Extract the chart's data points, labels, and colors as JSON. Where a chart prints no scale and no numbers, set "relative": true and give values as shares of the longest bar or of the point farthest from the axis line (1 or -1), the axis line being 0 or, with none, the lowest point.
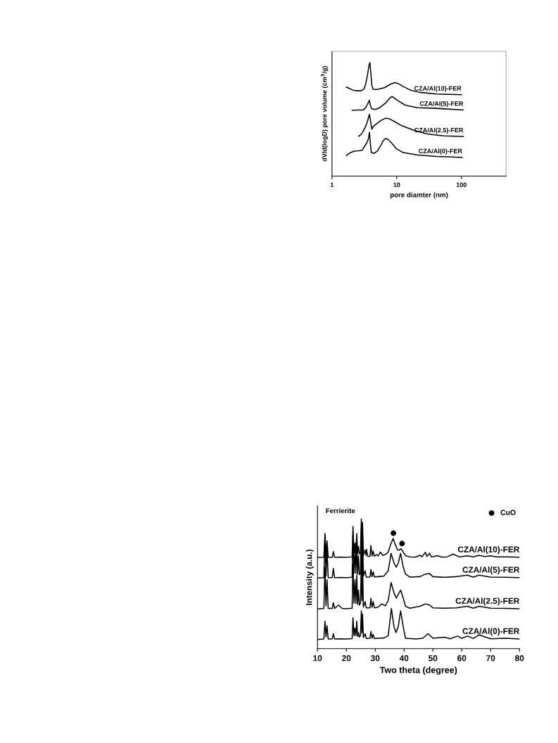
{
  "chart_data": [
    {
      "type": "line",
      "relative": true,
      "log": "x",
      "xlim": [
        1,
        490
      ],
      "xticks": [
        1,
        10,
        100
      ],
      "xlabel": "pore diamter (nm)",
      "ylabel": "dV/d(logD) pore volume (cm$^{3}$/g)",
      "series": [
        {
          "name": "CZA/Al(10)-FER",
          "color": "#000000",
          "x": [
            1.67,
            1.84,
            2.09,
            2.37,
            2.8,
            3.1,
            3.31,
            3.54,
            3.76,
            3.85,
            3.98,
            4.12,
            4.33,
            5.03,
            6.47,
            7.98,
            9.43,
            10.7,
            12.6,
            16.3,
            22.7,
            40.8,
            100
          ],
          "values": [
            0.785,
            0.773,
            0.758,
            0.752,
            0.752,
            0.764,
            0.81,
            0.893,
            0.986,
            1.0,
            0.913,
            0.8,
            0.764,
            0.764,
            0.779,
            0.81,
            0.824,
            0.814,
            0.789,
            0.758,
            0.738,
            0.723,
            0.717
          ]
        },
        {
          "name": "CZA/Al(5)-FER",
          "color": "#000000",
          "x": [
            2.05,
            2.47,
            3.05,
            3.31,
            3.54,
            3.79,
            3.91,
            4.12,
            4.63,
            5.47,
            6.75,
            7.65,
            8.46,
            9.04,
            10.7,
            13.7,
            20.9,
            40.8,
            107
          ],
          "values": [
            0.579,
            0.583,
            0.583,
            0.603,
            0.634,
            0.669,
            0.624,
            0.593,
            0.587,
            0.603,
            0.645,
            0.682,
            0.702,
            0.69,
            0.661,
            0.624,
            0.603,
            0.597,
            0.583
          ]
        },
        {
          "name": "CZA/Al(2.5)-FER",
          "color": "#000000",
          "x": [
            2.58,
            2.8,
            3.05,
            3.37,
            3.6,
            3.79,
            3.95,
            4.12,
            4.36,
            4.83,
            5.71,
            6.75,
            7.65,
            9.04,
            11.6,
            17.7,
            29.2,
            52.5,
            107
          ],
          "values": [
            0.351,
            0.366,
            0.397,
            0.448,
            0.5,
            0.545,
            0.479,
            0.413,
            0.438,
            0.459,
            0.49,
            0.51,
            0.506,
            0.483,
            0.448,
            0.407,
            0.372,
            0.355,
            0.349
          ]
        },
        {
          "name": "CZA/Al(0)-FER",
          "color": "#000000",
          "x": [
            1.67,
            1.84,
            2.0,
            2.27,
            2.58,
            2.92,
            3.18,
            3.45,
            3.66,
            3.79,
            3.91,
            4.05,
            4.44,
            5.03,
            5.71,
            6.21,
            6.75,
            7.33,
            8.32,
            9.84,
            12.6,
            20.9,
            40.8,
            103
          ],
          "values": [
            0.18,
            0.2,
            0.211,
            0.221,
            0.223,
            0.227,
            0.262,
            0.293,
            0.331,
            0.386,
            0.293,
            0.207,
            0.2,
            0.221,
            0.273,
            0.314,
            0.331,
            0.324,
            0.293,
            0.242,
            0.207,
            0.186,
            0.174,
            0.165
          ]
        }
      ]
    },
    {
      "type": "line",
      "relative": true,
      "xlim": [
        10,
        80
      ],
      "xticks": [
        10,
        20,
        30,
        40,
        50,
        60,
        70,
        80
      ],
      "xlabel": "Two theta (degree)",
      "ylabel": "Intensity (a.u.)",
      "legend": "top right",
      "annotations": [
        "Ferrierite"
      ],
      "series": [
        {
          "name": "CZA/Al(10)-FER",
          "color": "#000000",
          "x": [
            10,
            12.2,
            12.6,
            12.95,
            13.3,
            13.7,
            15.1,
            15.5,
            15.9,
            18,
            20,
            22.0,
            22.3,
            22.65,
            23.0,
            23.3,
            23.6,
            23.9,
            24.2,
            24.5,
            24.9,
            25.2,
            25.4,
            25.6,
            25.9,
            26.5,
            26.8,
            27.0,
            27.4,
            28.2,
            28.5,
            28.9,
            29.3,
            29.7,
            30.5,
            31.0,
            31.8,
            32.5,
            33.5,
            34.5,
            35.3,
            36.2,
            37.0,
            37.8,
            38.4,
            39.0,
            39.8,
            40.6,
            42,
            44,
            45.5,
            46.2,
            47.4,
            47.9,
            48.8,
            49.5,
            51.6,
            53,
            55,
            57,
            59,
            62,
            64,
            66,
            68,
            70,
            72,
            76,
            80
          ],
          "values": [
            0.703,
            0.705,
            0.888,
            0.72,
            0.832,
            0.705,
            0.705,
            0.749,
            0.705,
            0.706,
            0.705,
            0.708,
            0.942,
            0.74,
            0.814,
            0.74,
            0.888,
            0.735,
            0.788,
            0.73,
            0.74,
            1.0,
            0.76,
            0.973,
            0.72,
            0.761,
            0.72,
            0.765,
            0.712,
            0.712,
            0.796,
            0.715,
            0.752,
            0.712,
            0.725,
            0.715,
            0.745,
            0.72,
            0.725,
            0.745,
            0.8,
            0.85,
            0.8,
            0.76,
            0.76,
            0.77,
            0.74,
            0.715,
            0.708,
            0.706,
            0.72,
            0.708,
            0.743,
            0.712,
            0.735,
            0.708,
            0.717,
            0.706,
            0.708,
            0.729,
            0.708,
            0.715,
            0.708,
            0.72,
            0.71,
            0.715,
            0.707,
            0.707,
            0.705
          ]
        },
        {
          "name": "CZA/Al(5)-FER",
          "color": "#000000",
          "x": [
            10,
            12.2,
            12.6,
            12.95,
            13.3,
            13.7,
            15.1,
            15.5,
            15.9,
            18,
            20,
            22.0,
            22.3,
            22.65,
            23.0,
            23.3,
            23.6,
            23.9,
            24.2,
            24.5,
            24.9,
            25.2,
            25.4,
            25.6,
            25.9,
            26.5,
            26.9,
            28.2,
            28.5,
            28.9,
            29.3,
            29.7,
            31,
            33,
            34.5,
            35.5,
            36.5,
            37.3,
            38.0,
            38.8,
            39.7,
            40.5,
            42,
            45.5,
            47.4,
            48.8,
            50,
            54,
            58,
            62,
            64,
            66,
            70,
            75,
            80
          ],
          "values": [
            0.545,
            0.548,
            0.871,
            0.56,
            0.77,
            0.548,
            0.548,
            0.619,
            0.548,
            0.549,
            0.548,
            0.55,
            0.876,
            0.58,
            0.761,
            0.58,
            0.814,
            0.575,
            0.717,
            0.57,
            0.58,
            0.929,
            0.6,
            0.903,
            0.56,
            0.602,
            0.552,
            0.553,
            0.611,
            0.555,
            0.593,
            0.553,
            0.555,
            0.56,
            0.6,
            0.735,
            0.66,
            0.628,
            0.66,
            0.735,
            0.63,
            0.575,
            0.552,
            0.555,
            0.575,
            0.579,
            0.555,
            0.55,
            0.555,
            0.566,
            0.552,
            0.566,
            0.552,
            0.55,
            0.548
          ]
        },
        {
          "name": "CZA/Al(2.5)-FER",
          "color": "#000000",
          "x": [
            10,
            12.2,
            12.6,
            12.95,
            13.3,
            13.7,
            15.1,
            15.5,
            15.9,
            17.3,
            18.5,
            20,
            22.0,
            22.3,
            22.65,
            23.0,
            23.3,
            23.6,
            23.9,
            24.2,
            24.5,
            24.9,
            25.2,
            25.4,
            25.6,
            25.9,
            26.5,
            26.9,
            28.2,
            28.5,
            28.9,
            29.3,
            29.7,
            31,
            32.3,
            33.5,
            34.5,
            35.5,
            36.5,
            37.3,
            38.0,
            38.8,
            39.7,
            40.5,
            42,
            45.5,
            47.4,
            48.8,
            50,
            54,
            58,
            62,
            64,
            66,
            70,
            75,
            80
          ],
          "values": [
            0.306,
            0.31,
            0.628,
            0.33,
            0.531,
            0.31,
            0.31,
            0.354,
            0.31,
            0.336,
            0.31,
            0.308,
            0.312,
            0.65,
            0.35,
            0.531,
            0.35,
            0.566,
            0.34,
            0.451,
            0.335,
            0.35,
            0.681,
            0.37,
            0.664,
            0.32,
            0.363,
            0.314,
            0.315,
            0.389,
            0.318,
            0.363,
            0.315,
            0.32,
            0.345,
            0.33,
            0.37,
            0.51,
            0.43,
            0.389,
            0.42,
            0.451,
            0.39,
            0.327,
            0.312,
            0.327,
            0.345,
            0.336,
            0.315,
            0.312,
            0.315,
            0.327,
            0.312,
            0.327,
            0.312,
            0.31,
            0.308
          ]
        },
        {
          "name": "CZA/Al(0)-FER",
          "color": "#000000",
          "x": [
            10,
            12.2,
            12.6,
            12.95,
            13.3,
            13.7,
            15.1,
            15.5,
            15.9,
            18,
            20,
            22.0,
            22.3,
            22.65,
            23.0,
            23.3,
            23.6,
            23.9,
            24.2,
            24.5,
            24.9,
            25.2,
            25.4,
            25.6,
            25.9,
            26.5,
            26.9,
            28.2,
            28.5,
            28.9,
            29.3,
            29.7,
            31,
            33,
            34.5,
            35.6,
            36.5,
            37.2,
            38.0,
            38.8,
            39.7,
            40.5,
            44,
            46.5,
            48.3,
            50,
            54,
            56,
            58.5,
            60,
            62,
            64,
            66,
            70,
            75,
            80
          ],
          "values": [
            0.071,
            0.075,
            0.212,
            0.09,
            0.177,
            0.075,
            0.075,
            0.115,
            0.075,
            0.076,
            0.075,
            0.077,
            0.239,
            0.1,
            0.159,
            0.1,
            0.212,
            0.095,
            0.124,
            0.09,
            0.1,
            0.292,
            0.12,
            0.265,
            0.085,
            0.115,
            0.078,
            0.08,
            0.133,
            0.08,
            0.11,
            0.078,
            0.08,
            0.082,
            0.1,
            0.31,
            0.17,
            0.124,
            0.17,
            0.292,
            0.17,
            0.08,
            0.074,
            0.08,
            0.115,
            0.08,
            0.088,
            0.076,
            0.097,
            0.08,
            0.097,
            0.078,
            0.106,
            0.076,
            0.08,
            0.075
          ]
        },
        {
          "name": "CuO",
          "type": "scatter",
          "marker": "circle",
          "color": "#000000",
          "x": [
            36.3,
            39.3
          ],
          "values": [
            0.89,
            0.81
          ]
        }
      ]
    }
  ]
}
